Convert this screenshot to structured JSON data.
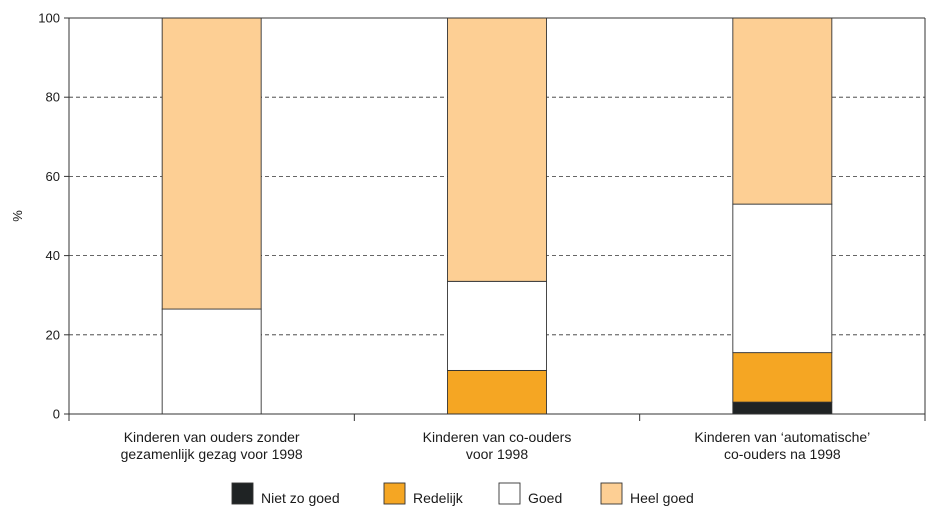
{
  "chart_data": {
    "type": "bar",
    "stacked": true,
    "ylabel": "%",
    "ylim": [
      0,
      100
    ],
    "yticks": [
      0,
      20,
      40,
      60,
      80,
      100
    ],
    "grid": "dashed horizontal",
    "legend_position": "bottom",
    "categories": [
      [
        "Kinderen van ouders zonder",
        "gezamenlijk gezag voor 1998"
      ],
      [
        "Kinderen van co-ouders",
        "voor 1998"
      ],
      [
        "Kinderen van ‘automatische’",
        "co-ouders na 1998"
      ]
    ],
    "series": [
      {
        "name": "Niet zo goed",
        "color": "#1f2324",
        "values": [
          0,
          0,
          3
        ]
      },
      {
        "name": "Redelijk",
        "color": "#f5a623",
        "values": [
          0,
          11,
          12.5
        ]
      },
      {
        "name": "Goed",
        "color": "#ffffff",
        "values": [
          26.5,
          22.5,
          37.5
        ]
      },
      {
        "name": "Heel goed",
        "color": "#fdcf94",
        "values": [
          73.5,
          66.5,
          47
        ]
      }
    ]
  }
}
